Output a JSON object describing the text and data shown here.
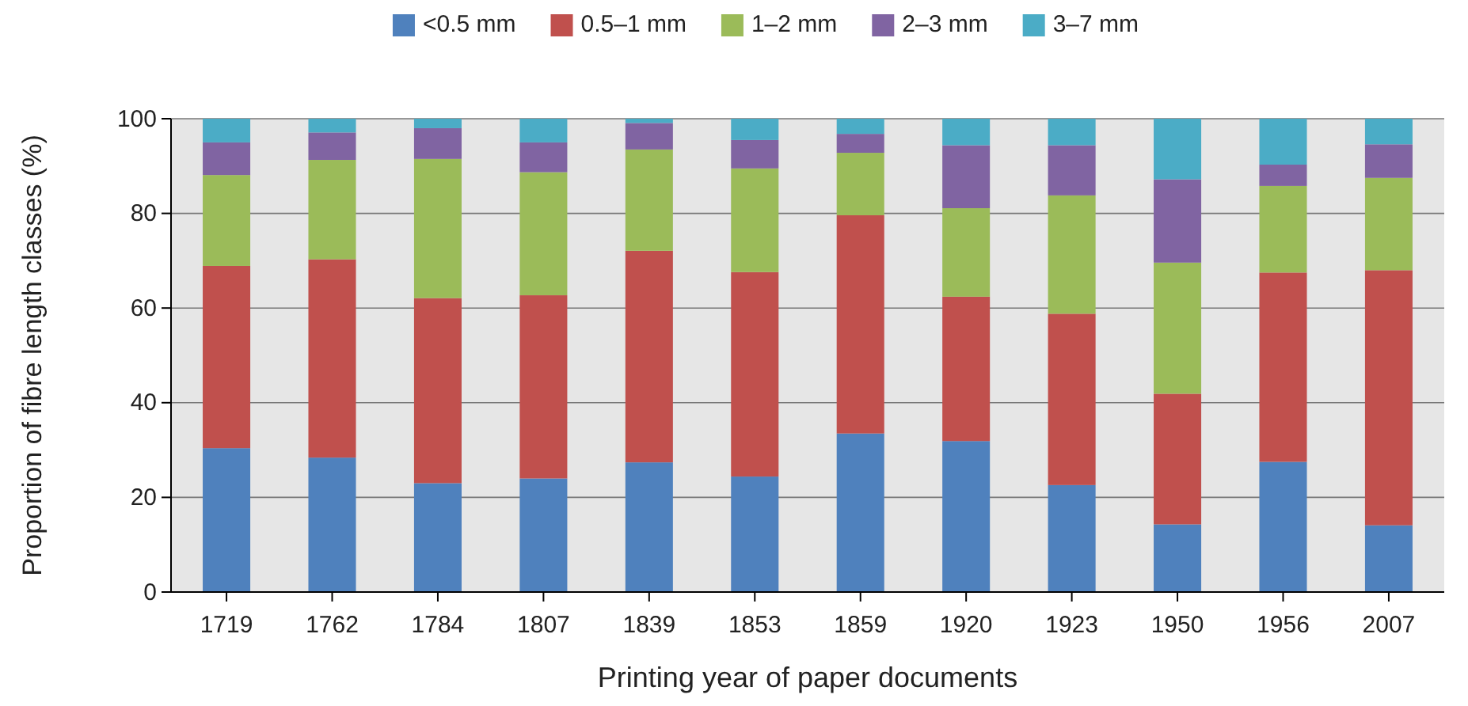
{
  "chart_data": {
    "type": "bar",
    "stacked": true,
    "xlabel": "Printing year of paper documents",
    "ylabel": "Proportion of fibre length classes (%)",
    "categories": [
      "1719",
      "1762",
      "1784",
      "1807",
      "1839",
      "1853",
      "1859",
      "1920",
      "1923",
      "1950",
      "1956",
      "2007"
    ],
    "series": [
      {
        "name": "<0.5 mm",
        "color": "#4f81bd",
        "values": [
          30.4,
          28.4,
          23.0,
          24.0,
          27.4,
          24.4,
          33.5,
          31.9,
          22.6,
          14.3,
          27.5,
          14.1
        ]
      },
      {
        "name": "0.5–1 mm",
        "color": "#c0504d",
        "values": [
          38.5,
          41.9,
          39.1,
          38.7,
          44.7,
          43.2,
          46.1,
          30.5,
          36.2,
          27.6,
          40.0,
          53.9
        ]
      },
      {
        "name": "1–2 mm",
        "color": "#9bbb59",
        "values": [
          19.2,
          21.0,
          29.4,
          26.0,
          21.4,
          21.9,
          13.2,
          18.7,
          25.0,
          27.7,
          18.3,
          19.5
        ]
      },
      {
        "name": "2–3 mm",
        "color": "#8064a2",
        "values": [
          6.9,
          5.8,
          6.5,
          6.3,
          5.6,
          6.0,
          4.0,
          13.3,
          10.6,
          17.6,
          4.5,
          7.1
        ]
      },
      {
        "name": "3–7 mm",
        "color": "#4bacc6",
        "values": [
          5.0,
          2.9,
          2.0,
          5.0,
          0.9,
          4.5,
          3.2,
          5.6,
          5.6,
          12.8,
          9.7,
          5.4
        ]
      }
    ],
    "ylim": [
      0,
      100
    ],
    "yticks": [
      0,
      20,
      40,
      60,
      80,
      100
    ],
    "grid": "y",
    "legend": "top"
  }
}
